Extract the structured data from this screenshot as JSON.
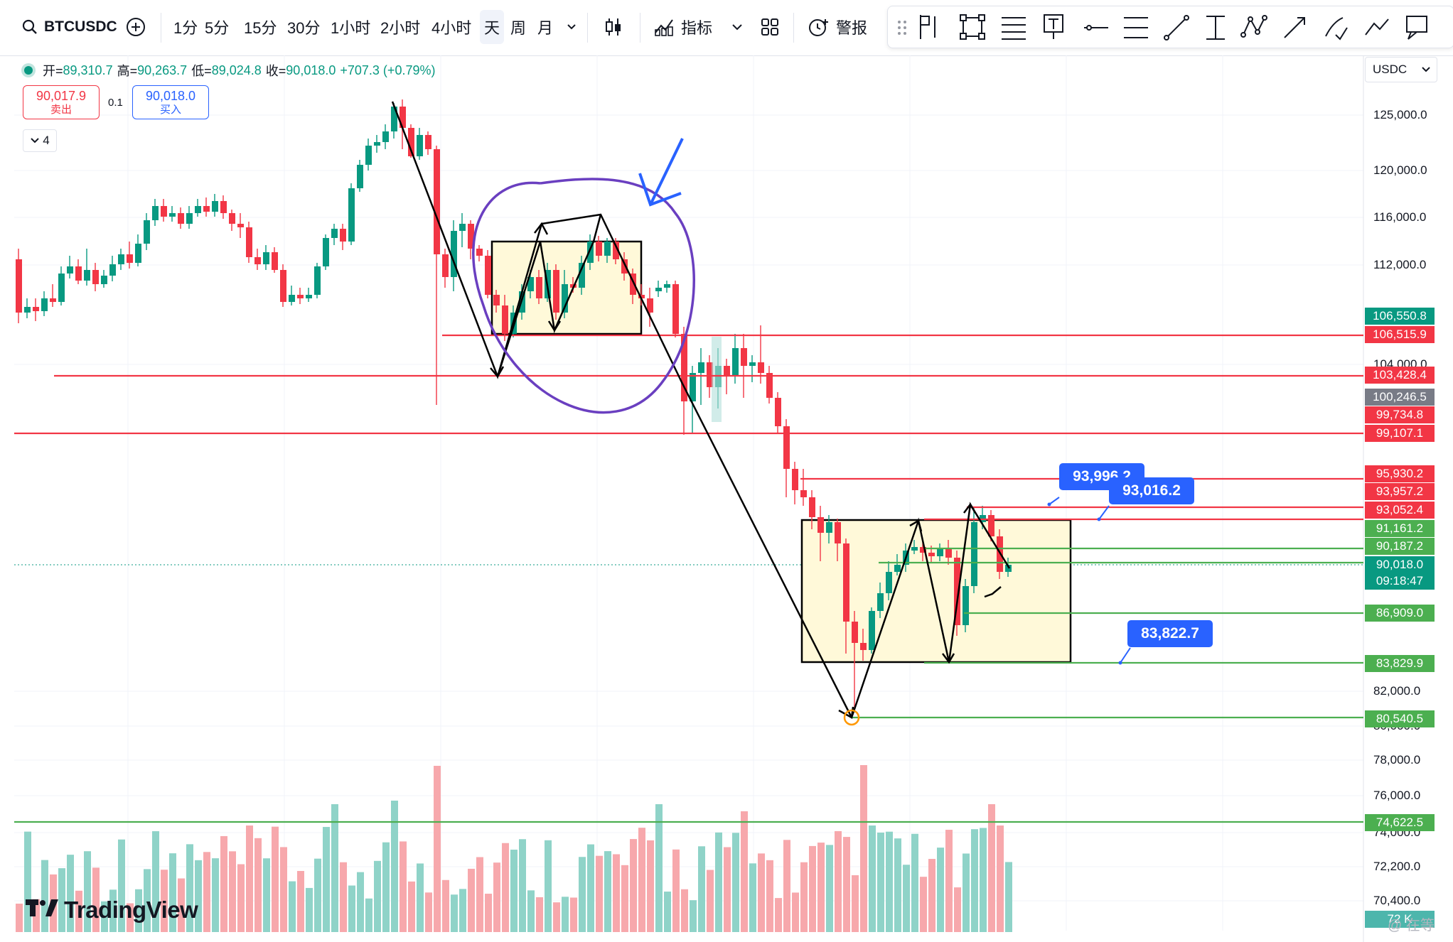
{
  "toolbar": {
    "symbol": "BTCUSDC",
    "intervals": [
      "1分",
      "5分",
      "15分",
      "30分",
      "1小时",
      "2小时",
      "4小时",
      "天",
      "周",
      "月"
    ],
    "active_interval": "天",
    "indicators_label": "指标",
    "alert_label": "警报"
  },
  "legend": {
    "open_label": "开=",
    "open": "89,310.7",
    "high_label": "高=",
    "high": "90,263.7",
    "low_label": "低=",
    "low": "89,024.8",
    "close_label": "收=",
    "close": "90,018.0",
    "change": "+707.3 (+0.79%)"
  },
  "trade": {
    "sell_price": "90,017.9",
    "sell_label": "卖出",
    "spread": "0.1",
    "buy_price": "90,018.0",
    "buy_label": "买入"
  },
  "indicator_count": "4",
  "currency": "USDC",
  "price_axis": {
    "ticks": [
      {
        "label": "125,000.0",
        "price": 125000
      },
      {
        "label": "120,000.0",
        "price": 120000
      },
      {
        "label": "116,000.0",
        "price": 116000
      },
      {
        "label": "112,000.0",
        "price": 112000
      },
      {
        "label": "104,000.0",
        "price": 104000
      },
      {
        "label": "82,000.0",
        "price": 82000
      },
      {
        "label": "80,000.0",
        "price": 80000
      },
      {
        "label": "78,000.0",
        "price": 78000
      },
      {
        "label": "76,000.0",
        "price": 76000
      },
      {
        "label": "74,000.0",
        "price": 74000
      },
      {
        "label": "72,200.0",
        "price": 72200
      },
      {
        "label": "70,400.0",
        "price": 70400
      }
    ],
    "badges": [
      {
        "label": "106,550.8",
        "color": "#089981"
      },
      {
        "label": "106,515.9",
        "color": "#f23645"
      },
      {
        "label": "103,428.4",
        "color": "#f23645"
      },
      {
        "label": "100,246.5",
        "color": "#787b86"
      },
      {
        "label": "99,734.8",
        "color": "#f23645"
      },
      {
        "label": "99,107.1",
        "color": "#f23645"
      },
      {
        "label": "95,930.2",
        "color": "#f23645"
      },
      {
        "label": "93,957.2",
        "color": "#f23645"
      },
      {
        "label": "93,052.4",
        "color": "#f23645"
      },
      {
        "label": "91,161.2",
        "color": "#4caf50"
      },
      {
        "label": "90,187.2",
        "color": "#4caf50"
      },
      {
        "label": "90,018.0",
        "color": "#089981"
      },
      {
        "label": "09:18:47",
        "color": "#089981"
      },
      {
        "label": "86,909.0",
        "color": "#4caf50"
      },
      {
        "label": "83,829.9",
        "color": "#4caf50"
      },
      {
        "label": "80,540.5",
        "color": "#4caf50"
      },
      {
        "label": "74,622.5",
        "color": "#4caf50"
      },
      {
        "label": "72 K",
        "color": "#4db6ac"
      }
    ]
  },
  "callouts": [
    {
      "label": "93,996.2"
    },
    {
      "label": "93,016.2"
    },
    {
      "label": "83,822.7"
    }
  ],
  "logo_text": "TradingView",
  "watermark": "@ 在等",
  "colors": {
    "up": "#089981",
    "down": "#f23645",
    "level_red": "#f23645",
    "level_green": "#4caf50",
    "accent": "#2962ff",
    "box": "#fff9d9",
    "circle": "#6a3fc0"
  }
}
